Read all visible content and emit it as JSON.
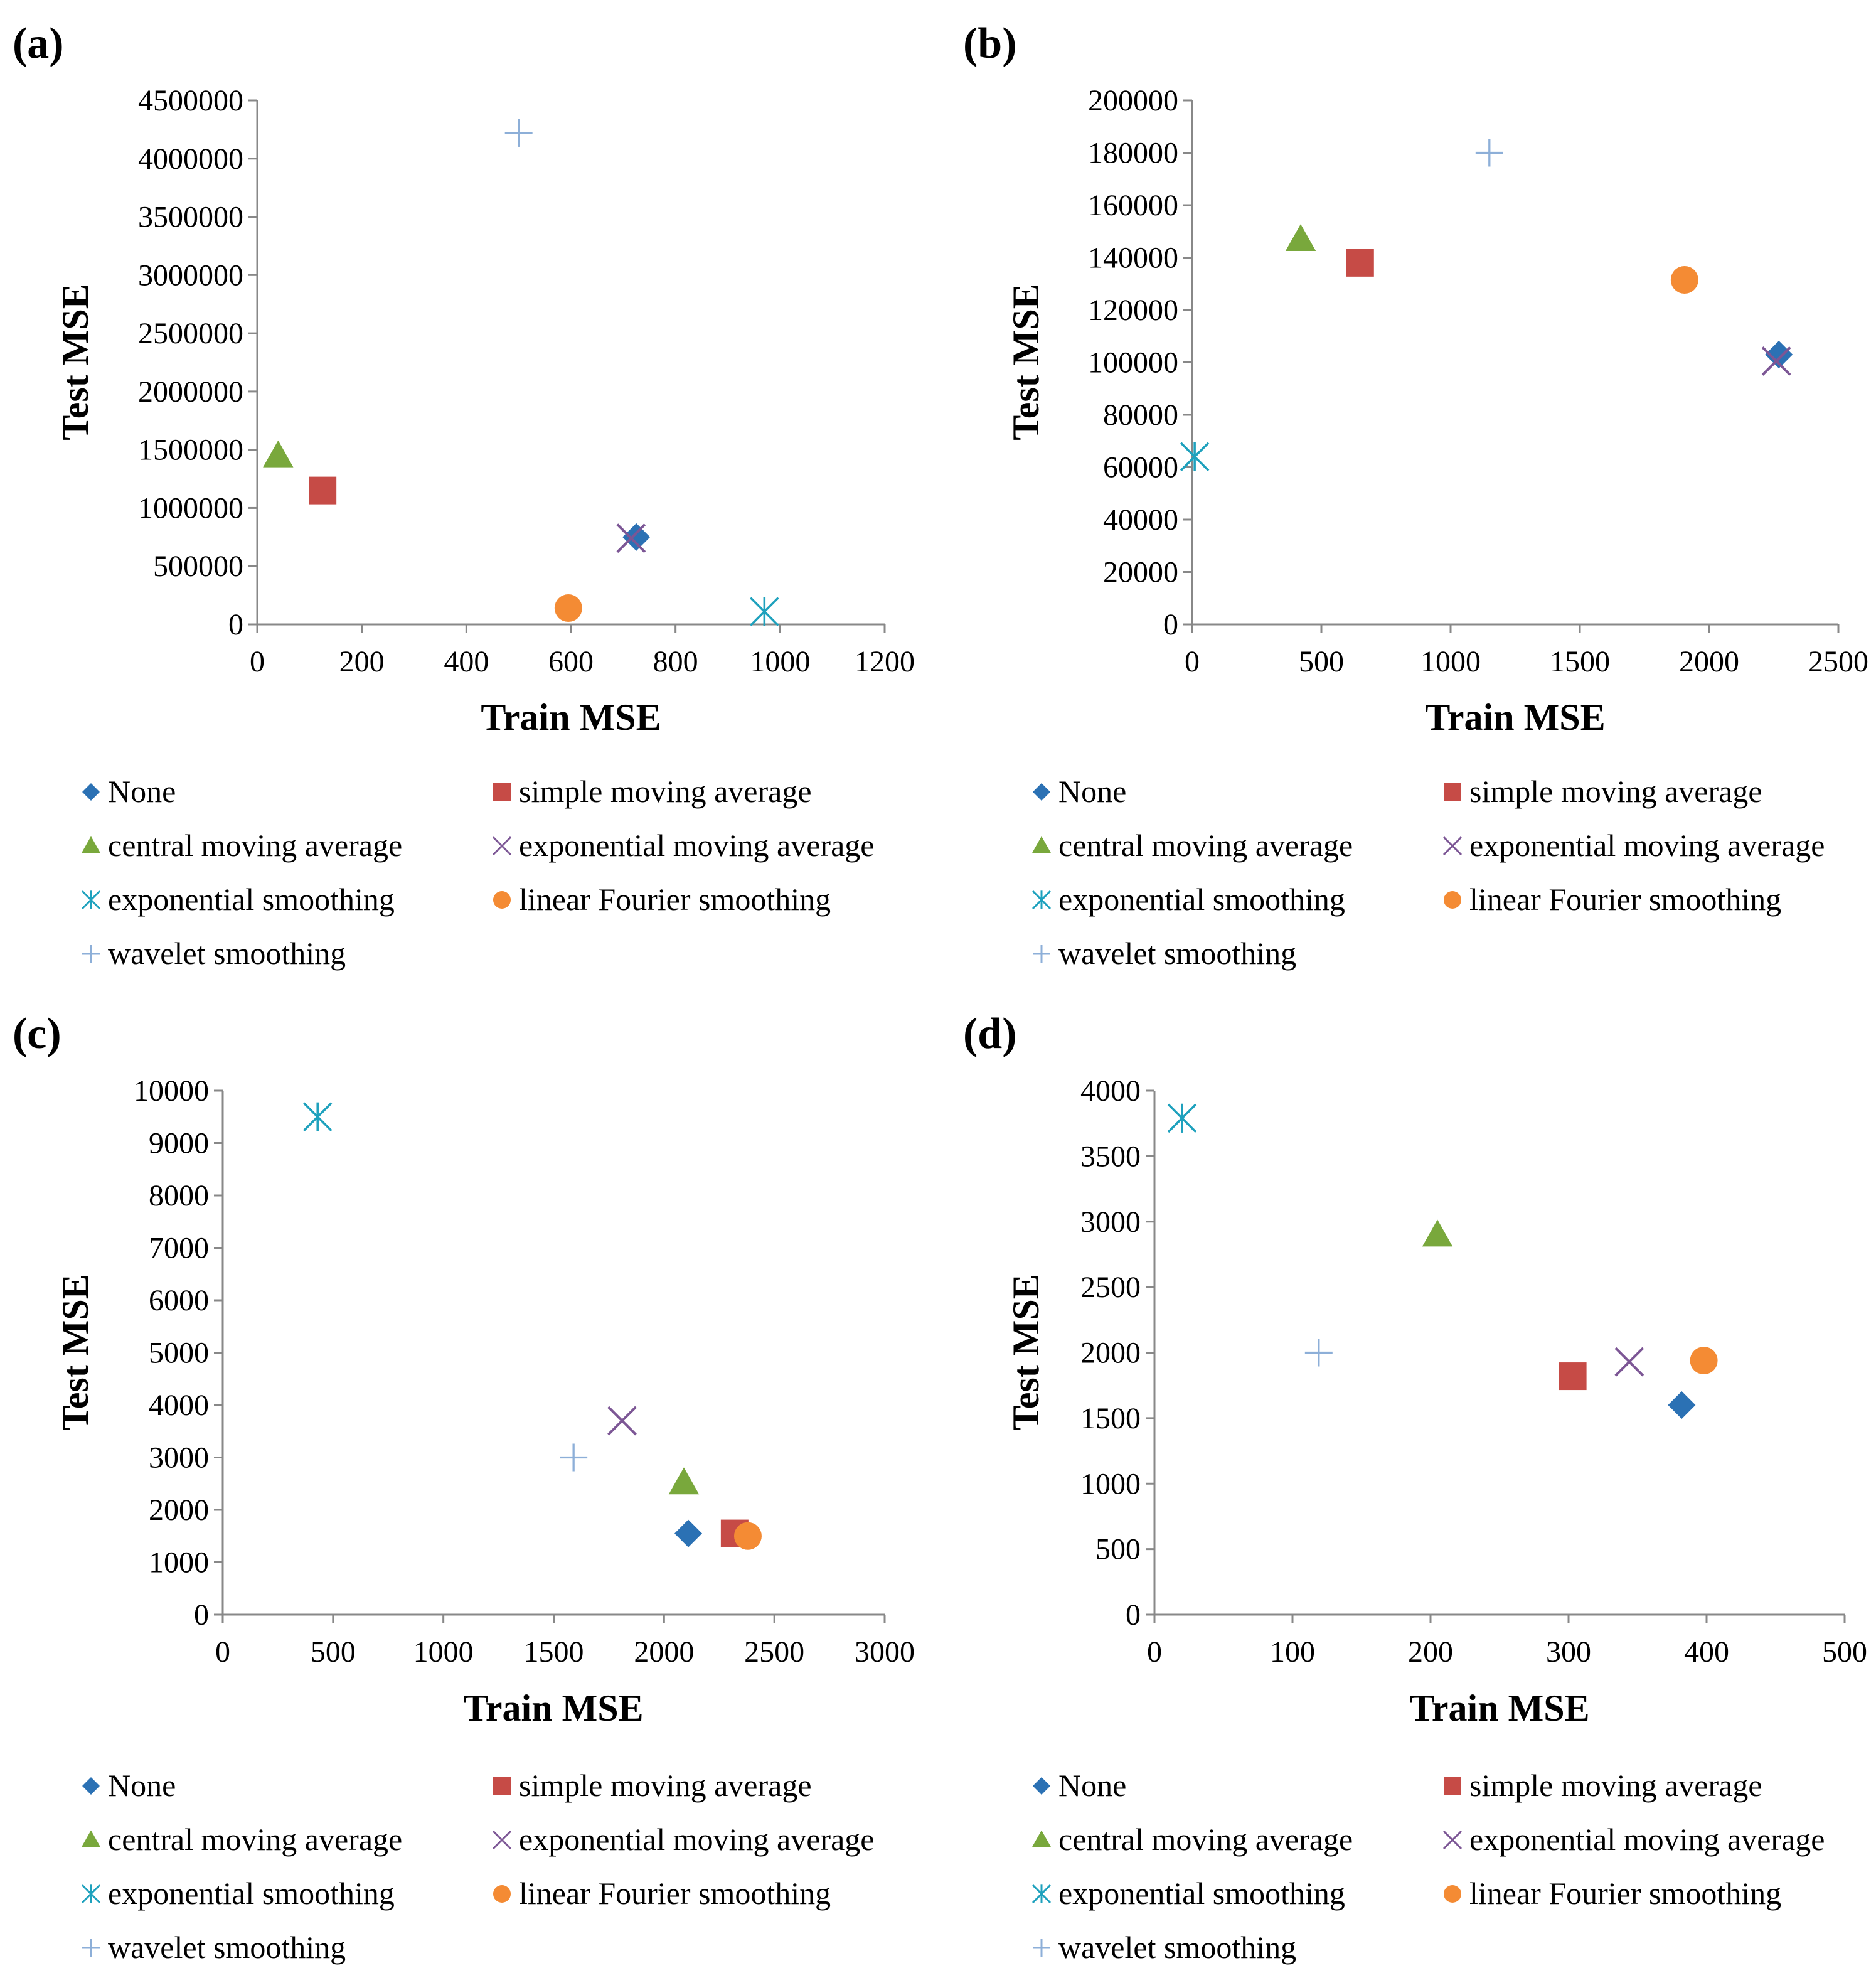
{
  "markers": {
    "None": {
      "shape": "diamond",
      "color": "#2B71B4"
    },
    "simple moving average": {
      "shape": "square",
      "color": "#C64B46"
    },
    "central moving average": {
      "shape": "triangle",
      "color": "#79A83C"
    },
    "exponential moving average": {
      "shape": "x",
      "color": "#7C5695"
    },
    "exponential smoothing": {
      "shape": "star",
      "color": "#1EA1BD"
    },
    "linear Fourier smoothing": {
      "shape": "circle",
      "color": "#F48B34"
    },
    "wavelet smoothing": {
      "shape": "plus",
      "color": "#8DAFD8"
    }
  },
  "chart_data": [
    {
      "type": "scatter",
      "panel": "(a)",
      "xlabel": "Train MSE",
      "ylabel": "Test MSE",
      "xlim": [
        0,
        1200
      ],
      "ylim": [
        0,
        4500000
      ],
      "xticks": [
        "0",
        "200",
        "400",
        "600",
        "800",
        "1000",
        "1200"
      ],
      "yticks": [
        "0",
        "500000",
        "1000000",
        "1500000",
        "2000000",
        "2500000",
        "3000000",
        "3500000",
        "4000000",
        "4500000"
      ],
      "legend": [
        "None",
        "simple moving average",
        "central moving average",
        "exponential moving average",
        "exponential smoothing",
        "linear Fourier smoothing",
        "wavelet smoothing"
      ],
      "series": [
        {
          "name": "None",
          "x": 725,
          "y": 750000
        },
        {
          "name": "simple moving average",
          "x": 125,
          "y": 1150000
        },
        {
          "name": "central moving average",
          "x": 40,
          "y": 1450000
        },
        {
          "name": "exponential moving average",
          "x": 715,
          "y": 740000
        },
        {
          "name": "exponential smoothing",
          "x": 970,
          "y": 110000
        },
        {
          "name": "linear Fourier smoothing",
          "x": 595,
          "y": 140000
        },
        {
          "name": "wavelet smoothing",
          "x": 500,
          "y": 4220000
        }
      ]
    },
    {
      "type": "scatter",
      "panel": "(b)",
      "xlabel": "Train MSE",
      "ylabel": "Test MSE",
      "xlim": [
        0,
        2500
      ],
      "ylim": [
        0,
        200000
      ],
      "xticks": [
        "0",
        "500",
        "1000",
        "1500",
        "2000",
        "2500"
      ],
      "yticks": [
        "0",
        "20000",
        "40000",
        "60000",
        "80000",
        "100000",
        "120000",
        "140000",
        "160000",
        "180000",
        "200000"
      ],
      "legend": [
        "None",
        "simple moving average",
        "central moving average",
        "exponential moving average",
        "exponential smoothing",
        "linear Fourier smoothing",
        "wavelet smoothing"
      ],
      "series": [
        {
          "name": "None",
          "x": 2270,
          "y": 103000
        },
        {
          "name": "simple moving average",
          "x": 650,
          "y": 138000
        },
        {
          "name": "central moving average",
          "x": 420,
          "y": 147000
        },
        {
          "name": "exponential moving average",
          "x": 2260,
          "y": 100500
        },
        {
          "name": "exponential smoothing",
          "x": 10,
          "y": 64000
        },
        {
          "name": "linear Fourier smoothing",
          "x": 1905,
          "y": 131500
        },
        {
          "name": "wavelet smoothing",
          "x": 1150,
          "y": 180000
        }
      ]
    },
    {
      "type": "scatter",
      "panel": "(c)",
      "xlabel": "Train MSE",
      "ylabel": "Test MSE",
      "xlim": [
        0,
        3000
      ],
      "ylim": [
        0,
        10000
      ],
      "xticks": [
        "0",
        "500",
        "1000",
        "1500",
        "2000",
        "2500",
        "3000"
      ],
      "yticks": [
        "0",
        "1000",
        "2000",
        "3000",
        "4000",
        "5000",
        "6000",
        "7000",
        "8000",
        "9000",
        "10000"
      ],
      "legend": [
        "None",
        "simple moving average",
        "central moving average",
        "exponential moving average",
        "exponential smoothing",
        "linear Fourier smoothing",
        "wavelet smoothing"
      ],
      "series": [
        {
          "name": "None",
          "x": 2110,
          "y": 1550
        },
        {
          "name": "simple moving average",
          "x": 2320,
          "y": 1550
        },
        {
          "name": "central moving average",
          "x": 2090,
          "y": 2520
        },
        {
          "name": "exponential moving average",
          "x": 1810,
          "y": 3700
        },
        {
          "name": "exponential smoothing",
          "x": 430,
          "y": 9500
        },
        {
          "name": "linear Fourier smoothing",
          "x": 2380,
          "y": 1500
        },
        {
          "name": "wavelet smoothing",
          "x": 1590,
          "y": 3000
        }
      ]
    },
    {
      "type": "scatter",
      "panel": "(d)",
      "xlabel": "Train MSE",
      "ylabel": "Test MSE",
      "xlim": [
        0,
        500
      ],
      "ylim": [
        0,
        4000
      ],
      "xticks": [
        "0",
        "100",
        "200",
        "300",
        "400",
        "500"
      ],
      "yticks": [
        "0",
        "500",
        "1000",
        "1500",
        "2000",
        "2500",
        "3000",
        "3500",
        "4000"
      ],
      "legend": [
        "None",
        "simple moving average",
        "central moving average",
        "exponential moving average",
        "exponential smoothing",
        "linear Fourier smoothing",
        "wavelet smoothing"
      ],
      "series": [
        {
          "name": "None",
          "x": 382,
          "y": 1600
        },
        {
          "name": "simple moving average",
          "x": 303,
          "y": 1820
        },
        {
          "name": "central moving average",
          "x": 205,
          "y": 2900
        },
        {
          "name": "exponential moving average",
          "x": 344,
          "y": 1930
        },
        {
          "name": "exponential smoothing",
          "x": 20,
          "y": 3790
        },
        {
          "name": "linear Fourier smoothing",
          "x": 398,
          "y": 1940
        },
        {
          "name": "wavelet smoothing",
          "x": 119,
          "y": 2000
        }
      ]
    }
  ]
}
